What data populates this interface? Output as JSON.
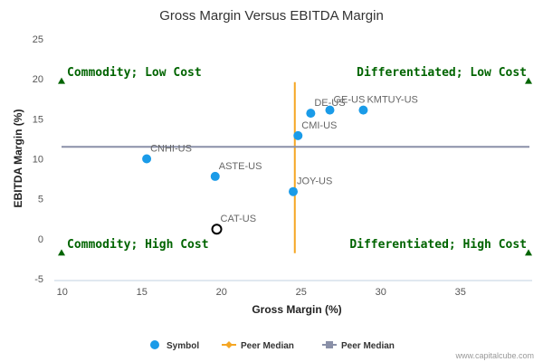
{
  "chart_data": {
    "type": "scatter",
    "title": "Gross Margin Versus EBITDA Margin",
    "xlabel": "Gross Margin (%)",
    "ylabel": "EBITDA Margin (%)",
    "xlim": [
      9.5,
      39.5
    ],
    "ylim": [
      -5,
      25
    ],
    "xticks": [
      10,
      15,
      20,
      25,
      30,
      35
    ],
    "yticks": [
      -5,
      0,
      5,
      10,
      15,
      20,
      25
    ],
    "grid": false,
    "points": [
      {
        "label": "CNHI-US",
        "x": 15.3,
        "y": 10.0,
        "highlight": false
      },
      {
        "label": "ASTE-US",
        "x": 19.6,
        "y": 7.8,
        "highlight": false
      },
      {
        "label": "JOY-US",
        "x": 24.5,
        "y": 5.9,
        "highlight": false
      },
      {
        "label": "CMI-US",
        "x": 24.8,
        "y": 12.9,
        "highlight": false
      },
      {
        "label": "DE-US",
        "x": 25.6,
        "y": 15.7,
        "highlight": false
      },
      {
        "label": "GE-US",
        "x": 26.8,
        "y": 16.1,
        "highlight": false
      },
      {
        "label": "KMTUY-US",
        "x": 28.9,
        "y": 16.1,
        "highlight": false
      },
      {
        "label": "CAT-US",
        "x": 19.7,
        "y": 1.2,
        "highlight": true
      }
    ],
    "peer_median_x": 24.6,
    "peer_median_x_range": [
      -1.8,
      19.6
    ],
    "peer_median_y": 11.5,
    "quadrants": {
      "top_left": "Commodity; Low Cost",
      "top_right": "Differentiated; Low Cost",
      "bottom_left": "Commodity; High Cost",
      "bottom_right": "Differentiated; High Cost"
    },
    "legend": [
      {
        "name": "Symbol",
        "color": "#1a9be8",
        "shape": "circle"
      },
      {
        "name": "Peer Median",
        "color": "#f5a623",
        "shape": "line-diamond"
      },
      {
        "name": "Peer Median",
        "color": "#8a90a8",
        "shape": "line-square"
      }
    ],
    "legend_position": "bottom-center",
    "colors": {
      "point": "#1a9be8",
      "highlight_stroke": "#000000",
      "median_x": "#f5a623",
      "median_y": "#8a90a8",
      "quadrant": "#006400"
    }
  },
  "footer": {
    "credit": "www.capitalcube.com"
  }
}
